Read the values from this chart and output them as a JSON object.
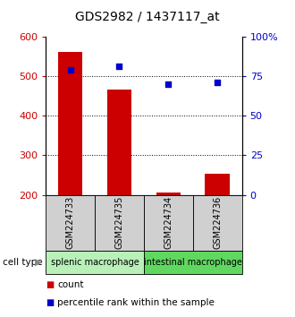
{
  "title": "GDS2982 / 1437117_at",
  "samples": [
    "GSM224733",
    "GSM224735",
    "GSM224734",
    "GSM224736"
  ],
  "counts": [
    560,
    465,
    207,
    253
  ],
  "percentile_ranks": [
    79,
    81,
    70,
    71
  ],
  "count_min": 200,
  "count_max": 600,
  "percentile_min": 0,
  "percentile_max": 100,
  "yticks_left": [
    200,
    300,
    400,
    500,
    600
  ],
  "yticks_right": [
    0,
    25,
    50,
    75,
    100
  ],
  "ytick_labels_right": [
    "0",
    "25",
    "50",
    "75",
    "100%"
  ],
  "groups": [
    {
      "label": "splenic macrophage",
      "samples": [
        0,
        1
      ],
      "color": "#b8f0b8"
    },
    {
      "label": "intestinal macrophage",
      "samples": [
        2,
        3
      ],
      "color": "#60d860"
    }
  ],
  "bar_color": "#cc0000",
  "dot_color": "#0000cc",
  "sample_box_color": "#d0d0d0",
  "bar_width": 0.5,
  "cell_type_label": "cell type",
  "legend_count_label": "count",
  "legend_percentile_label": "percentile rank within the sample",
  "title_fontsize": 10,
  "axis_fontsize": 8,
  "sample_fontsize": 7,
  "group_fontsize": 7,
  "legend_fontsize": 7.5
}
